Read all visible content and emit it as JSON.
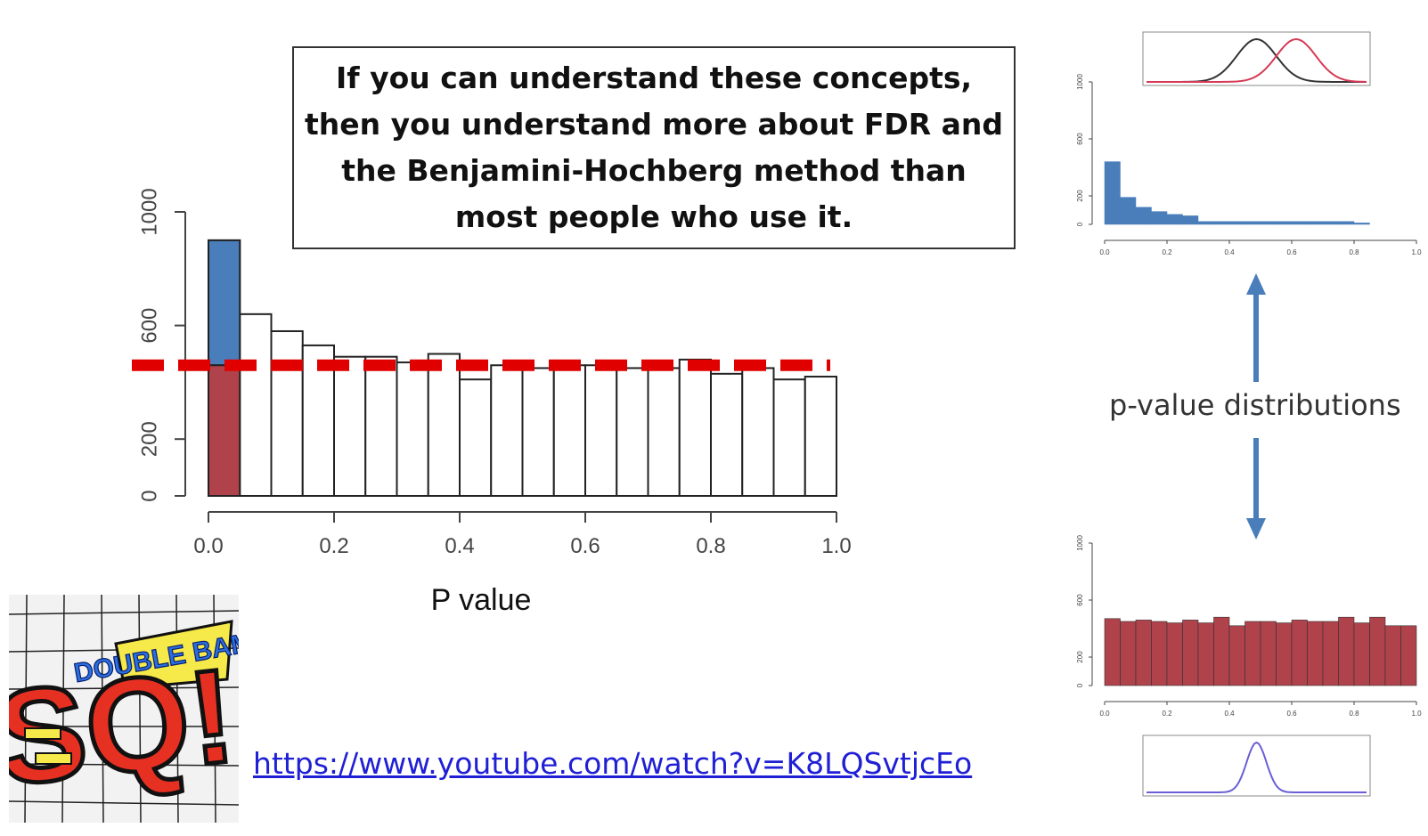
{
  "callout": {
    "text": "If you can understand these concepts,\nthen you understand more about FDR and\nthe Benjamini-Hochberg method than\nmost people who use it."
  },
  "link": {
    "text": "https://www.youtube.com/watch?v=K8LQSvtjcEo"
  },
  "logo": {
    "bubble_text": "DOUBLE BAM!!!",
    "letters": "SQ!"
  },
  "arrow_caption": "p-value distributions",
  "colors": {
    "blue": "#4a7ebb",
    "red_fill": "#b0424b",
    "dashed_line": "#e00000",
    "link": "#1f1fd6",
    "arrow": "#4a7ebb"
  },
  "chart_data": [
    {
      "type": "bar",
      "id": "main-histogram",
      "xlabel": "P value",
      "ylabel": "",
      "xlim": [
        0,
        1
      ],
      "ylim": [
        0,
        1000
      ],
      "x_ticks": [
        "0.0",
        "0.2",
        "0.4",
        "0.6",
        "0.8",
        "1.0"
      ],
      "y_ticks": [
        "0",
        "200",
        "600",
        "1000"
      ],
      "bin_width": 0.05,
      "x": [
        0.0,
        0.05,
        0.1,
        0.15,
        0.2,
        0.25,
        0.3,
        0.35,
        0.4,
        0.45,
        0.5,
        0.55,
        0.6,
        0.65,
        0.7,
        0.75,
        0.8,
        0.85,
        0.9,
        0.95
      ],
      "values": [
        900,
        640,
        580,
        530,
        490,
        490,
        470,
        500,
        410,
        460,
        450,
        460,
        460,
        450,
        450,
        480,
        430,
        450,
        410,
        420
      ],
      "highlight_first_bin": {
        "blue_above": 900,
        "red_below": 460
      },
      "reference_line": 460
    },
    {
      "type": "bar",
      "id": "top-right-histogram",
      "xlim": [
        0,
        1
      ],
      "ylim": [
        0,
        1000
      ],
      "x_ticks": [
        "0.0",
        "0.2",
        "0.4",
        "0.6",
        "0.8",
        "1.0"
      ],
      "y_ticks": [
        "0",
        "200",
        "600",
        "1000"
      ],
      "bin_width": 0.05,
      "x": [
        0.0,
        0.05,
        0.1,
        0.15,
        0.2,
        0.25,
        0.3,
        0.35,
        0.4,
        0.45,
        0.5,
        0.55,
        0.6,
        0.65,
        0.7,
        0.75,
        0.8
      ],
      "values": [
        440,
        190,
        120,
        90,
        70,
        60,
        20,
        20,
        20,
        20,
        20,
        20,
        20,
        20,
        20,
        20,
        10
      ]
    },
    {
      "type": "bar",
      "id": "bottom-right-histogram",
      "xlim": [
        0,
        1
      ],
      "ylim": [
        0,
        1000
      ],
      "x_ticks": [
        "0.0",
        "0.2",
        "0.4",
        "0.6",
        "0.8",
        "1.0"
      ],
      "y_ticks": [
        "0",
        "200",
        "600",
        "1000"
      ],
      "bin_width": 0.05,
      "x": [
        0.0,
        0.05,
        0.1,
        0.15,
        0.2,
        0.25,
        0.3,
        0.35,
        0.4,
        0.45,
        0.5,
        0.55,
        0.6,
        0.65,
        0.7,
        0.75,
        0.8,
        0.85,
        0.9,
        0.95
      ],
      "values": [
        470,
        450,
        460,
        450,
        440,
        460,
        440,
        480,
        420,
        450,
        450,
        440,
        460,
        450,
        450,
        480,
        440,
        480,
        420,
        420
      ]
    },
    {
      "type": "line",
      "id": "top-density-curves",
      "series": [
        {
          "color": "#333333",
          "mean": 0.5,
          "sd": 0.09
        },
        {
          "color": "#d63a55",
          "mean": 0.68,
          "sd": 0.09
        }
      ]
    },
    {
      "type": "line",
      "id": "bottom-density-curve",
      "series": [
        {
          "color": "#6a5fd6",
          "mean": 0.5,
          "sd": 0.045
        }
      ]
    }
  ]
}
